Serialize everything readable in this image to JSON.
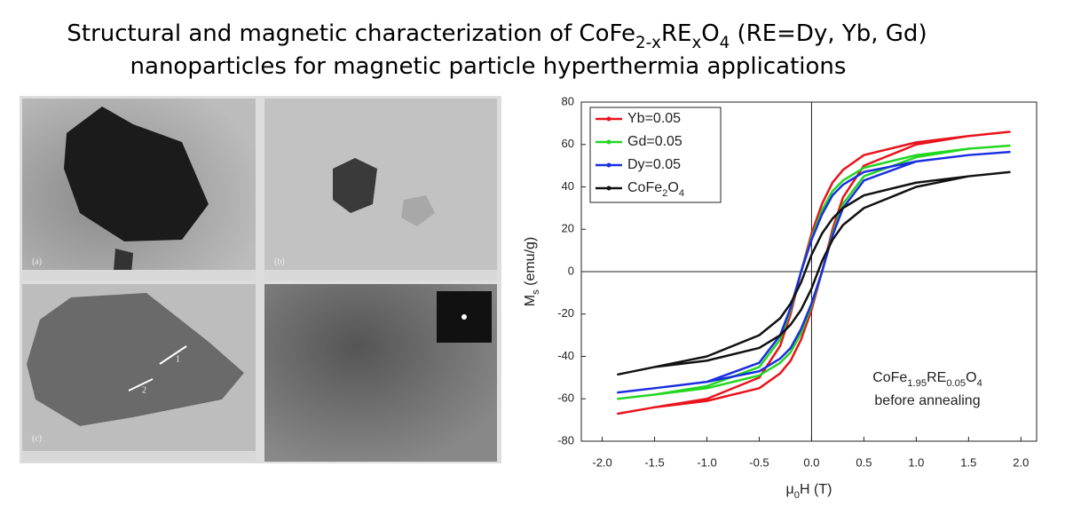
{
  "title": {
    "line1": [
      {
        "text": "Structural and magnetic characterization of CoFe"
      },
      {
        "text": "2-x",
        "sub": true
      },
      {
        "text": "RE"
      },
      {
        "text": "x",
        "sub": true
      },
      {
        "text": "O"
      },
      {
        "text": "4",
        "sub": true
      },
      {
        "text": " (RE=Dy, Yb, Gd)"
      }
    ],
    "line2": [
      {
        "text": "nanoparticles for magnetic particle hyperthermia applications"
      }
    ]
  },
  "images": {
    "panels": [
      {
        "label": "(a)"
      },
      {
        "label": "(b)"
      },
      {
        "label": "(c)"
      },
      {
        "label": ""
      }
    ],
    "markers": [
      "1",
      "2"
    ]
  },
  "chart_data": {
    "type": "line",
    "xlabel": [
      {
        "text": "μ"
      },
      {
        "text": "0",
        "sub": true
      },
      {
        "text": "H (T)"
      }
    ],
    "ylabel": [
      {
        "text": "M"
      },
      {
        "text": "s",
        "sub": true
      },
      {
        "text": " (emu/g)"
      }
    ],
    "annotation": {
      "line1": [
        {
          "text": "CoFe"
        },
        {
          "text": "1.95",
          "sub": true
        },
        {
          "text": "RE"
        },
        {
          "text": "0.05",
          "sub": true
        },
        {
          "text": "O"
        },
        {
          "text": "4",
          "sub": true
        }
      ],
      "line2": [
        {
          "text": "before annealing"
        }
      ]
    },
    "x": [
      1.9,
      1.5,
      1.0,
      0.5,
      0.3,
      0.2,
      0.1,
      0.0,
      -0.1,
      -0.2,
      -0.3,
      -0.5,
      -1.0,
      -1.5,
      -1.85,
      -1.5,
      -1.0,
      -0.5,
      -0.3,
      -0.2,
      -0.1,
      0.0,
      0.1,
      0.2,
      0.3,
      0.5,
      1.0,
      1.5,
      1.9
    ],
    "series": [
      {
        "name": [
          {
            "text": "Yb=0.05"
          }
        ],
        "color": "#e8141c",
        "values": [
          66,
          64,
          61,
          55,
          48,
          42,
          32,
          18,
          0,
          -20,
          -35,
          -50,
          -60,
          -64,
          -67,
          -64,
          -61,
          -55,
          -48,
          -42,
          -32,
          -18,
          0,
          20,
          35,
          50,
          60,
          64,
          66
        ]
      },
      {
        "name": [
          {
            "text": "Gd=0.05"
          }
        ],
        "color": "#22d622",
        "values": [
          59.5,
          58,
          55,
          49,
          43,
          38,
          29,
          16,
          0,
          -18,
          -32,
          -45,
          -54,
          -58,
          -60,
          -58,
          -55,
          -49,
          -43,
          -38,
          -29,
          -16,
          0,
          18,
          32,
          45,
          54,
          58,
          59.5
        ]
      },
      {
        "name": [
          {
            "text": "Dy=0.05"
          }
        ],
        "color": "#1a2ee0",
        "values": [
          56.5,
          55,
          52,
          47,
          41,
          36,
          27,
          15,
          0,
          -17,
          -30,
          -43,
          -52,
          -55,
          -57,
          -55,
          -52,
          -47,
          -41,
          -36,
          -27,
          -15,
          0,
          17,
          30,
          43,
          52,
          55,
          56.5
        ]
      },
      {
        "name": [
          {
            "text": "CoFe"
          },
          {
            "text": "2",
            "sub": true
          },
          {
            "text": "O"
          },
          {
            "text": "4",
            "sub": true
          }
        ],
        "color": "#111111",
        "values": [
          47,
          45,
          42,
          36,
          30,
          25,
          18,
          8,
          -5,
          -15,
          -22,
          -30,
          -40,
          -45,
          -48.5,
          -45,
          -42,
          -36,
          -30,
          -25,
          -18,
          -8,
          5,
          15,
          22,
          30,
          40,
          45,
          47
        ]
      }
    ],
    "xlim": [
      -2.2,
      2.15
    ],
    "ylim": [
      -80,
      80
    ],
    "xticks": [
      {
        "value": -2,
        "label": "-2.0"
      },
      {
        "value": -1.5,
        "label": "-1.5"
      },
      {
        "value": -1,
        "label": "-1.0"
      },
      {
        "value": -0.5,
        "label": "-0.5"
      },
      {
        "value": 0,
        "label": "0.0"
      },
      {
        "value": 0.5,
        "label": "0.5"
      },
      {
        "value": 1,
        "label": "1.0"
      },
      {
        "value": 1.5,
        "label": "1.5"
      },
      {
        "value": 2,
        "label": "2.0"
      }
    ],
    "yticks": [
      -80,
      -60,
      -40,
      -20,
      0,
      20,
      40,
      60,
      80
    ],
    "zero_lines": true,
    "legend": "upper left"
  }
}
